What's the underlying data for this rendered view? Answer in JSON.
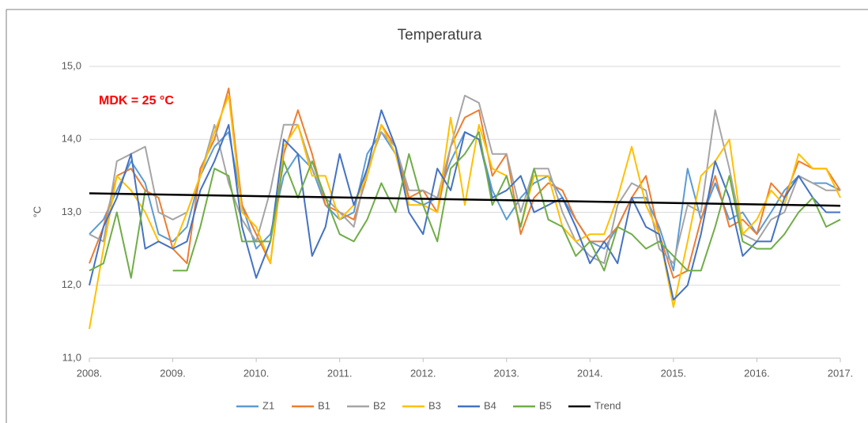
{
  "chart_data": {
    "type": "line",
    "title": "Temperatura",
    "y_label": "°C",
    "annotation": "MDK = 25 °C",
    "x": [
      2008,
      2008.17,
      2008.33,
      2008.5,
      2008.67,
      2008.83,
      2009,
      2009.17,
      2009.33,
      2009.5,
      2009.67,
      2009.83,
      2010,
      2010.17,
      2010.33,
      2010.5,
      2010.67,
      2010.83,
      2011,
      2011.17,
      2011.33,
      2011.5,
      2011.67,
      2011.83,
      2012,
      2012.17,
      2012.33,
      2012.5,
      2012.67,
      2012.83,
      2013,
      2013.17,
      2013.33,
      2013.5,
      2013.67,
      2013.83,
      2014,
      2014.17,
      2014.33,
      2014.5,
      2014.67,
      2014.83,
      2015,
      2015.17,
      2015.33,
      2015.5,
      2015.67,
      2015.83,
      2016,
      2016.17,
      2016.33,
      2016.5,
      2016.67,
      2016.83,
      2017
    ],
    "series": [
      {
        "name": "Z1",
        "color": "#5b9bd5",
        "values": [
          12.7,
          12.9,
          13.3,
          13.7,
          13.4,
          12.7,
          12.6,
          12.8,
          13.5,
          13.9,
          14.1,
          13.1,
          12.5,
          12.7,
          13.5,
          13.8,
          13.6,
          13.1,
          12.9,
          13.0,
          13.8,
          14.1,
          13.8,
          13.2,
          13.1,
          13.2,
          13.7,
          14.1,
          14.0,
          13.3,
          12.9,
          13.2,
          13.4,
          13.5,
          13.2,
          12.9,
          12.6,
          12.5,
          12.8,
          13.2,
          13.2,
          12.8,
          12.2,
          13.6,
          12.9,
          13.4,
          12.9,
          13.0,
          12.7,
          13.0,
          13.3,
          13.5,
          13.4,
          13.4,
          13.3
        ]
      },
      {
        "name": "B1",
        "color": "#ed7d31",
        "values": [
          12.3,
          12.8,
          13.5,
          13.6,
          13.3,
          13.2,
          12.5,
          12.3,
          13.6,
          14.0,
          14.7,
          13.1,
          12.7,
          12.3,
          13.8,
          14.4,
          13.8,
          13.1,
          13.0,
          12.9,
          13.5,
          14.2,
          13.9,
          13.2,
          13.3,
          13.0,
          13.9,
          14.3,
          14.4,
          13.5,
          13.8,
          12.7,
          13.2,
          13.4,
          13.3,
          12.9,
          12.6,
          12.6,
          12.8,
          13.2,
          13.5,
          12.7,
          12.1,
          12.2,
          12.9,
          13.5,
          12.8,
          12.9,
          12.7,
          13.4,
          13.2,
          13.7,
          13.6,
          13.6,
          13.3
        ]
      },
      {
        "name": "B2",
        "color": "#a5a5a5",
        "values": [
          12.7,
          12.6,
          13.7,
          13.8,
          13.9,
          13.0,
          12.9,
          13.0,
          13.5,
          14.2,
          13.4,
          12.9,
          12.6,
          13.3,
          14.2,
          14.2,
          13.6,
          13.2,
          13.0,
          12.8,
          13.6,
          14.1,
          13.9,
          13.3,
          13.3,
          13.2,
          13.9,
          14.6,
          14.5,
          13.8,
          13.8,
          13.0,
          13.6,
          13.6,
          13.0,
          12.6,
          12.4,
          12.3,
          13.1,
          13.4,
          13.3,
          12.5,
          12.3,
          13.1,
          13.0,
          14.4,
          13.6,
          12.7,
          12.6,
          12.9,
          13.0,
          13.5,
          13.4,
          13.3,
          13.3
        ]
      },
      {
        "name": "B3",
        "color": "#ffc000",
        "values": [
          11.4,
          12.5,
          13.5,
          13.3,
          13.0,
          12.6,
          12.5,
          13.0,
          13.5,
          14.1,
          14.6,
          13.0,
          12.8,
          12.3,
          13.9,
          14.2,
          13.5,
          13.5,
          12.9,
          13.1,
          13.5,
          14.2,
          13.8,
          13.1,
          13.1,
          13.0,
          14.3,
          13.1,
          14.2,
          13.6,
          13.5,
          12.8,
          13.5,
          13.5,
          12.8,
          12.6,
          12.7,
          12.7,
          13.2,
          13.9,
          13.1,
          12.7,
          11.7,
          12.6,
          13.5,
          13.7,
          14.0,
          12.7,
          12.9,
          13.3,
          13.1,
          13.8,
          13.6,
          13.6,
          13.2
        ]
      },
      {
        "name": "B4",
        "color": "#4472c4",
        "values": [
          12.0,
          12.8,
          13.2,
          13.8,
          12.5,
          12.6,
          12.5,
          12.6,
          13.3,
          13.7,
          14.2,
          12.8,
          12.1,
          12.6,
          14.0,
          13.8,
          12.4,
          12.8,
          13.8,
          13.1,
          13.6,
          14.4,
          13.9,
          13.0,
          12.7,
          13.6,
          13.3,
          14.1,
          14.0,
          13.2,
          13.3,
          13.5,
          13.0,
          13.1,
          13.2,
          12.8,
          12.3,
          12.6,
          12.3,
          13.2,
          12.8,
          12.7,
          11.8,
          12.0,
          12.7,
          13.7,
          13.2,
          12.4,
          12.6,
          12.6,
          13.2,
          13.5,
          13.2,
          13.0,
          13.0
        ]
      },
      {
        "name": "B5",
        "color": "#70ad47",
        "values": [
          12.2,
          12.3,
          13.0,
          12.1,
          13.3,
          null,
          12.2,
          12.2,
          12.8,
          13.6,
          13.5,
          12.6,
          12.6,
          12.6,
          13.7,
          13.2,
          13.7,
          13.2,
          12.7,
          12.6,
          12.9,
          13.4,
          13.0,
          13.8,
          13.1,
          12.6,
          13.6,
          13.8,
          14.1,
          13.1,
          13.5,
          12.8,
          13.6,
          12.9,
          12.8,
          12.4,
          12.6,
          12.2,
          12.8,
          12.7,
          12.5,
          12.6,
          12.4,
          12.2,
          12.2,
          12.8,
          13.5,
          12.6,
          12.5,
          12.5,
          12.7,
          13.0,
          13.2,
          12.8,
          12.9
        ]
      },
      {
        "name": "Trend",
        "color": "#000000",
        "x": [
          2008,
          2017
        ],
        "values": [
          13.26,
          13.09
        ]
      }
    ],
    "xlim": [
      2008,
      2017
    ],
    "xticks": [
      {
        "value": 2008,
        "label": "2008."
      },
      {
        "value": 2009,
        "label": "2009."
      },
      {
        "value": 2010,
        "label": "2010."
      },
      {
        "value": 2011,
        "label": "2011."
      },
      {
        "value": 2012,
        "label": "2012."
      },
      {
        "value": 2013,
        "label": "2013."
      },
      {
        "value": 2014,
        "label": "2014."
      },
      {
        "value": 2015,
        "label": "2015."
      },
      {
        "value": 2016,
        "label": "2016."
      },
      {
        "value": 2017,
        "label": "2017."
      }
    ],
    "ylim": [
      11,
      15
    ],
    "yticks": [
      {
        "value": 11,
        "label": "11,0"
      },
      {
        "value": 12,
        "label": "12,0"
      },
      {
        "value": 13,
        "label": "13,0"
      },
      {
        "value": 14,
        "label": "14,0"
      },
      {
        "value": 15,
        "label": "15,0"
      }
    ],
    "grid": true,
    "legend": "bottom"
  }
}
